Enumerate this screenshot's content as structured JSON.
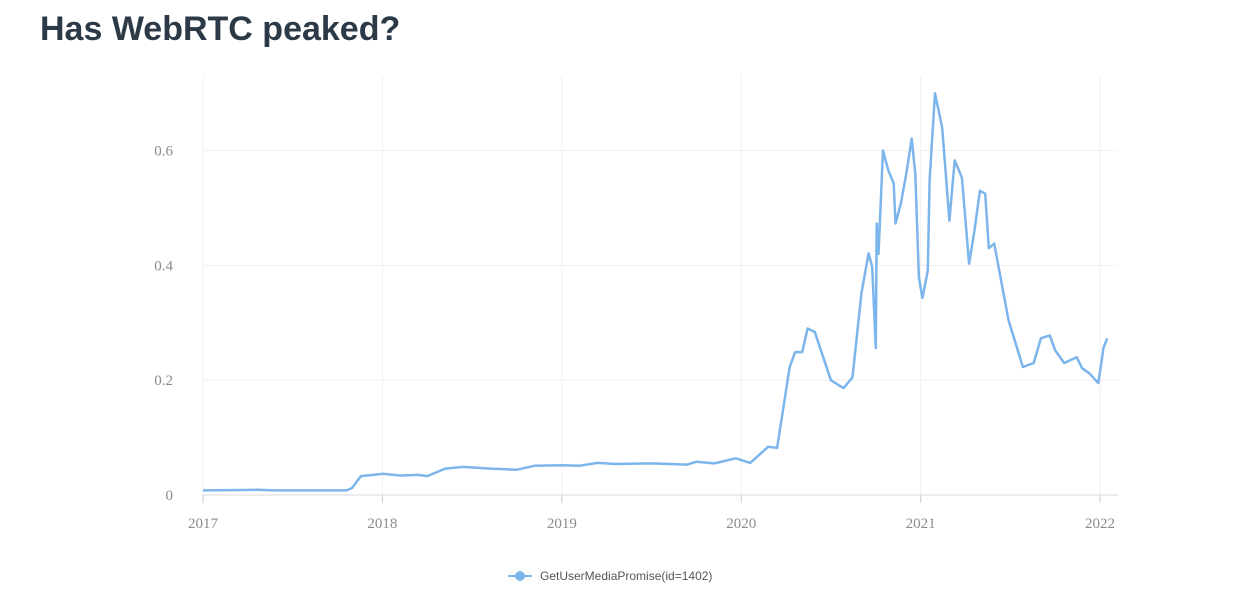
{
  "title": "Has WebRTC peaked?",
  "chart_data": {
    "type": "line",
    "title": "Has WebRTC peaked?",
    "xlabel": "",
    "ylabel": "",
    "xlim": [
      2017,
      2022.1
    ],
    "ylim": [
      0,
      0.73
    ],
    "grid": true,
    "legend_placement": "bottom-center",
    "x_ticks": [
      "2017",
      "2018",
      "2019",
      "2020",
      "2021",
      "2022"
    ],
    "x_tick_values": [
      2017,
      2018,
      2019,
      2020,
      2021,
      2022
    ],
    "y_ticks": [
      "0",
      "0.2",
      "0.4",
      "0.6"
    ],
    "y_tick_values": [
      0,
      0.2,
      0.4,
      0.6
    ],
    "series": [
      {
        "name": "GetUserMediaPromise(id=1402)",
        "color": "#7cb5ec",
        "x": [
          2017.0,
          2017.3,
          2017.4,
          2017.8,
          2017.83,
          2017.88,
          2017.95,
          2018.0,
          2018.1,
          2018.2,
          2018.25,
          2018.35,
          2018.45,
          2018.6,
          2018.75,
          2018.85,
          2019.0,
          2019.1,
          2019.2,
          2019.3,
          2019.5,
          2019.7,
          2019.75,
          2019.85,
          2019.97,
          2020.05,
          2020.15,
          2020.2,
          2020.27,
          2020.3,
          2020.34,
          2020.37,
          2020.41,
          2020.5,
          2020.57,
          2020.62,
          2020.67,
          2020.71,
          2020.73,
          2020.75,
          2020.755,
          2020.765,
          2020.79,
          2020.82,
          2020.85,
          2020.86,
          2020.89,
          2020.92,
          2020.95,
          2020.97,
          2020.99,
          2021.01,
          2021.04,
          2021.05,
          2021.08,
          2021.12,
          2021.16,
          2021.19,
          2021.23,
          2021.27,
          2021.3,
          2021.33,
          2021.36,
          2021.38,
          2021.41,
          2021.49,
          2021.57,
          2021.63,
          2021.67,
          2021.72,
          2021.75,
          2021.8,
          2021.87,
          2021.9,
          2021.94,
          2021.99,
          2022.02,
          2022.04
        ],
        "y": [
          0.008,
          0.009,
          0.008,
          0.008,
          0.012,
          0.033,
          0.035,
          0.037,
          0.034,
          0.035,
          0.033,
          0.046,
          0.049,
          0.046,
          0.044,
          0.051,
          0.052,
          0.051,
          0.056,
          0.054,
          0.055,
          0.053,
          0.058,
          0.055,
          0.064,
          0.056,
          0.084,
          0.082,
          0.223,
          0.249,
          0.249,
          0.29,
          0.284,
          0.2,
          0.186,
          0.205,
          0.351,
          0.421,
          0.397,
          0.256,
          0.473,
          0.42,
          0.6,
          0.565,
          0.543,
          0.473,
          0.508,
          0.56,
          0.621,
          0.56,
          0.379,
          0.343,
          0.391,
          0.548,
          0.7,
          0.64,
          0.478,
          0.583,
          0.553,
          0.403,
          0.461,
          0.53,
          0.525,
          0.43,
          0.438,
          0.304,
          0.223,
          0.23,
          0.273,
          0.278,
          0.252,
          0.23,
          0.24,
          0.221,
          0.212,
          0.195,
          0.257,
          0.273
        ]
      }
    ]
  }
}
